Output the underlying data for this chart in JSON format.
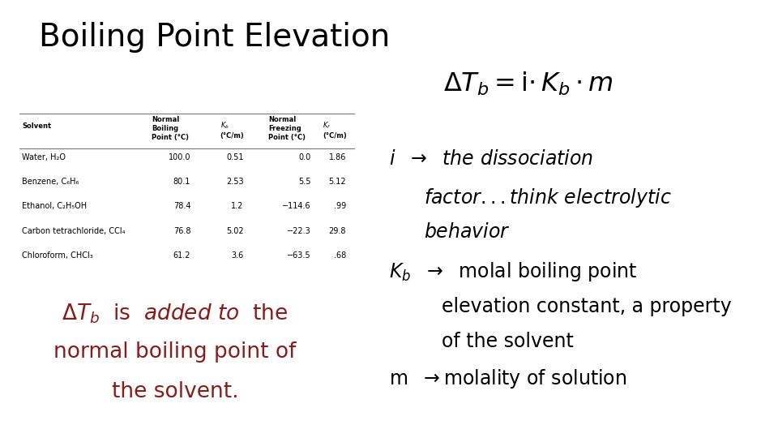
{
  "title": "Boiling Point Elevation",
  "title_color": "#000000",
  "title_fontsize": 28,
  "bg_color": "#ffffff",
  "red_color": "#8B1A1A",
  "table_data": [
    [
      "Water, H₂O",
      "100.0",
      "0.51",
      "0.0",
      "1.86"
    ],
    [
      "Benzene, C₆H₆",
      "80.1",
      "2.53",
      "5.5",
      "5.12"
    ],
    [
      "Ethanol, C₂H₅OH",
      "78.4",
      "1.2",
      "−114.6",
      ".99"
    ],
    [
      "Carbon tetrachloride, CCl₄",
      "76.8",
      "5.02",
      "−22.3",
      "29.8"
    ],
    [
      "Chloroform, CHCl₃",
      "61.2",
      "3.6",
      "−63.5",
      ".68"
    ]
  ]
}
